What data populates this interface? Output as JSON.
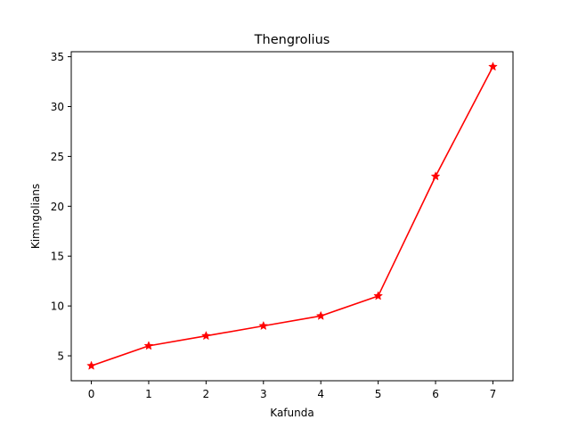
{
  "chart_data": {
    "type": "line",
    "title": "Thengrolius",
    "xlabel": "Kafunda",
    "ylabel": "Kimngolians",
    "x": [
      0,
      1,
      2,
      3,
      4,
      5,
      6,
      7
    ],
    "series": [
      {
        "values": [
          4,
          6,
          7,
          8,
          9,
          11,
          23,
          34
        ]
      }
    ],
    "xlim": [
      -0.35,
      7.35
    ],
    "ylim": [
      2.5,
      35.5
    ],
    "xticks": [
      "0",
      "1",
      "2",
      "3",
      "4",
      "5",
      "6",
      "7"
    ],
    "yticks": [
      "5",
      "10",
      "15",
      "20",
      "25",
      "30",
      "35"
    ],
    "grid": false,
    "line_color": "#ff0000",
    "marker": "star-icon"
  }
}
